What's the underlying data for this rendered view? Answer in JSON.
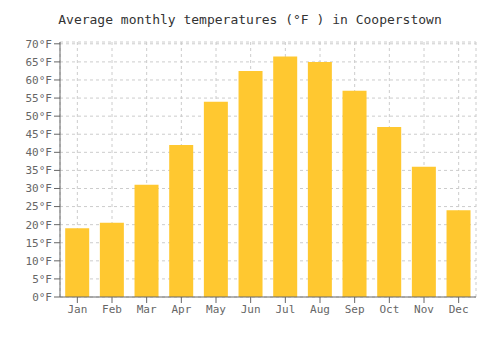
{
  "chart_data": {
    "type": "bar",
    "title": "Average monthly temperatures (°F ) in Cooperstown",
    "categories": [
      "Jan",
      "Feb",
      "Mar",
      "Apr",
      "May",
      "Jun",
      "Jul",
      "Aug",
      "Sep",
      "Oct",
      "Nov",
      "Dec"
    ],
    "values": [
      19,
      20.5,
      31,
      42,
      54,
      62.5,
      66.5,
      65,
      57,
      47,
      36,
      24
    ],
    "color": "#FFC830",
    "ylim": [
      0,
      70.5
    ],
    "yticks": [
      {
        "value": 0,
        "label": "0°F"
      },
      {
        "value": 5,
        "label": "5°F"
      },
      {
        "value": 10,
        "label": "10°F"
      },
      {
        "value": 15,
        "label": "15°F"
      },
      {
        "value": 20,
        "label": "20°F"
      },
      {
        "value": 25,
        "label": "25°F"
      },
      {
        "value": 30,
        "label": "30°F"
      },
      {
        "value": 35,
        "label": "35°F"
      },
      {
        "value": 40,
        "label": "40°F"
      },
      {
        "value": 45,
        "label": "45°F"
      },
      {
        "value": 50,
        "label": "50°F"
      },
      {
        "value": 55,
        "label": "55°F"
      },
      {
        "value": 60,
        "label": "60°F"
      },
      {
        "value": 65,
        "label": "65°F"
      },
      {
        "value": 70,
        "label": "70°F"
      }
    ],
    "grid": true
  }
}
